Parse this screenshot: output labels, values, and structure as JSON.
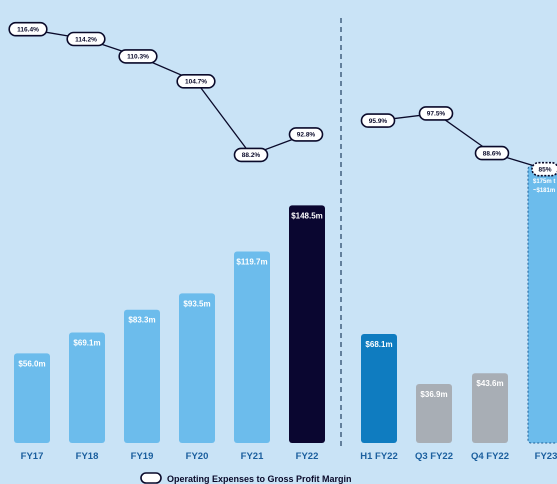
{
  "chart_data": {
    "type": "bar",
    "legend": {
      "label": "Operating Expenses to Gross Profit Margin",
      "placement": "bottom"
    },
    "colors": {
      "background": "#c9e3f6",
      "bar_light": "#6cbcec",
      "bar_dark": "#0a0630",
      "bar_mid": "#0f7cc0",
      "bar_gray": "#a8aeb5",
      "x_label": "#1b5f9e",
      "line": "#0a0a2a",
      "divider": "#4a6785"
    },
    "panels": [
      {
        "categories": [
          "FY17",
          "FY18",
          "FY19",
          "FY20",
          "FY21",
          "FY22"
        ],
        "values": [
          56.0,
          69.1,
          83.3,
          93.5,
          119.7,
          148.5
        ],
        "value_labels": [
          "$56.0m",
          "$69.1m",
          "$83.3m",
          "$93.5m",
          "$119.7m",
          "$148.5m"
        ],
        "bar_styles": [
          "light",
          "light",
          "light",
          "light",
          "light",
          "dark"
        ],
        "ratio_values": [
          116.4,
          114.2,
          110.3,
          104.7,
          88.2,
          92.8
        ],
        "ratio_labels": [
          "116.4%",
          "114.2%",
          "110.3%",
          "104.7%",
          "88.2%",
          "92.8%"
        ]
      },
      {
        "categories": [
          "H1 FY22",
          "Q3 FY22",
          "Q4 FY22",
          "FY23"
        ],
        "values": [
          68.1,
          36.9,
          43.6,
          175
        ],
        "value_labels": [
          "$68.1m",
          "$36.9m",
          "$43.6m",
          "$175m t ~$181m"
        ],
        "bar_styles": [
          "mid",
          "gray",
          "gray",
          "forecast"
        ],
        "ratio_values": [
          95.9,
          97.5,
          88.6,
          85
        ],
        "ratio_labels": [
          "95.9%",
          "97.5%",
          "88.6%",
          "85%"
        ]
      }
    ]
  }
}
